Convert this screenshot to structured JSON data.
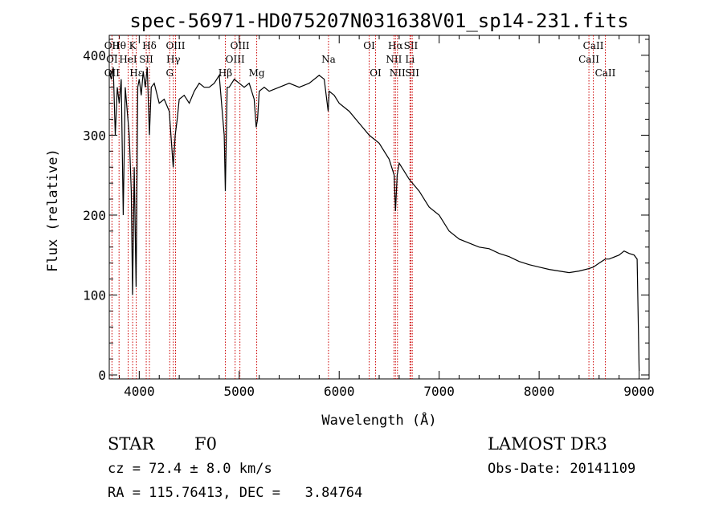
{
  "chart_data": {
    "type": "line",
    "title": "spec-56971-HD075207N031638V01_sp14-231.fits",
    "xlabel": "Wavelength (Å)",
    "ylabel": "Flux (relative)",
    "xlim": [
      3700,
      9100
    ],
    "ylim": [
      -5,
      425
    ],
    "x_ticks": [
      4000,
      5000,
      6000,
      7000,
      8000,
      9000
    ],
    "y_ticks": [
      0,
      100,
      200,
      300,
      400
    ],
    "series": [
      {
        "name": "spectrum",
        "x": [
          3700,
          3720,
          3740,
          3760,
          3780,
          3800,
          3820,
          3840,
          3860,
          3880,
          3900,
          3920,
          3933,
          3950,
          3968,
          3985,
          4000,
          4020,
          4040,
          4060,
          4080,
          4102,
          4120,
          4150,
          4200,
          4250,
          4300,
          4340,
          4360,
          4380,
          4400,
          4450,
          4500,
          4550,
          4600,
          4650,
          4700,
          4750,
          4800,
          4850,
          4861,
          4880,
          4900,
          4950,
          5000,
          5050,
          5100,
          5150,
          5170,
          5183,
          5200,
          5250,
          5300,
          5400,
          5500,
          5600,
          5700,
          5800,
          5850,
          5890,
          5900,
          5950,
          6000,
          6100,
          6200,
          6300,
          6400,
          6500,
          6550,
          6563,
          6580,
          6600,
          6650,
          6700,
          6800,
          6900,
          7000,
          7100,
          7200,
          7300,
          7400,
          7500,
          7600,
          7700,
          7800,
          7900,
          8000,
          8100,
          8200,
          8300,
          8400,
          8498,
          8542,
          8600,
          8662,
          8700,
          8800,
          8850,
          8900,
          8950,
          8980,
          9000
        ],
        "y": [
          380,
          370,
          385,
          300,
          360,
          340,
          370,
          200,
          360,
          330,
          300,
          230,
          100,
          260,
          110,
          360,
          370,
          350,
          380,
          360,
          385,
          300,
          360,
          365,
          340,
          345,
          330,
          260,
          300,
          320,
          345,
          350,
          340,
          355,
          365,
          360,
          360,
          365,
          375,
          300,
          230,
          360,
          360,
          370,
          365,
          360,
          365,
          345,
          310,
          320,
          355,
          360,
          355,
          360,
          365,
          360,
          365,
          375,
          370,
          330,
          355,
          350,
          340,
          330,
          315,
          300,
          290,
          270,
          250,
          205,
          250,
          265,
          255,
          245,
          230,
          210,
          200,
          180,
          170,
          165,
          160,
          158,
          152,
          148,
          142,
          138,
          135,
          132,
          130,
          128,
          130,
          133,
          135,
          140,
          145,
          145,
          150,
          155,
          152,
          150,
          145,
          5
        ]
      }
    ],
    "spectral_lines": [
      {
        "label": "Hθ",
        "wavelength": 3798,
        "row": 1
      },
      {
        "label": "OII",
        "wavelength": 3727,
        "row": 1
      },
      {
        "label": "K",
        "wavelength": 3934,
        "row": 1
      },
      {
        "label": "Hδ",
        "wavelength": 4102,
        "row": 1
      },
      {
        "label": "OIII",
        "wavelength": 4363,
        "row": 1
      },
      {
        "label": "OIII",
        "wavelength": 5007,
        "row": 1
      },
      {
        "label": "OI",
        "wavelength": 6300,
        "row": 1
      },
      {
        "label": "Hα",
        "wavelength": 6563,
        "row": 1
      },
      {
        "label": "SII",
        "wavelength": 6717,
        "row": 1
      },
      {
        "label": "CaII",
        "wavelength": 8542,
        "row": 1
      },
      {
        "label": "OI",
        "wavelength": 3727,
        "row": 2
      },
      {
        "label": "HeI",
        "wavelength": 3889,
        "row": 2
      },
      {
        "label": "SII",
        "wavelength": 4070,
        "row": 2
      },
      {
        "label": "Hγ",
        "wavelength": 4341,
        "row": 2
      },
      {
        "label": "OIII",
        "wavelength": 4959,
        "row": 2
      },
      {
        "label": "Na",
        "wavelength": 5893,
        "row": 2
      },
      {
        "label": "NII",
        "wavelength": 6548,
        "row": 2
      },
      {
        "label": "Li",
        "wavelength": 6708,
        "row": 2
      },
      {
        "label": "CaII",
        "wavelength": 8498,
        "row": 2
      },
      {
        "label": "OII",
        "wavelength": 3727,
        "row": 3
      },
      {
        "label": "Hε",
        "wavelength": 3970,
        "row": 3
      },
      {
        "label": "G",
        "wavelength": 4305,
        "row": 3
      },
      {
        "label": "Hβ",
        "wavelength": 4861,
        "row": 3
      },
      {
        "label": "Mg",
        "wavelength": 5175,
        "row": 3
      },
      {
        "label": "OI",
        "wavelength": 6364,
        "row": 3
      },
      {
        "label": "NII",
        "wavelength": 6583,
        "row": 3
      },
      {
        "label": "SII",
        "wavelength": 6731,
        "row": 3
      },
      {
        "label": "CaII",
        "wavelength": 8662,
        "row": 3
      }
    ],
    "line_color": "#cc0000",
    "grid": false,
    "legend": "none"
  },
  "info": {
    "object_type": "STAR",
    "subclass": "F0",
    "survey": "LAMOST DR3",
    "cz_text": "cz = 72.4 ± 8.0 km/s",
    "obs_date_text": "Obs-Date: 20141109",
    "radec_text": "RA = 115.76413, DEC =   3.84764"
  }
}
